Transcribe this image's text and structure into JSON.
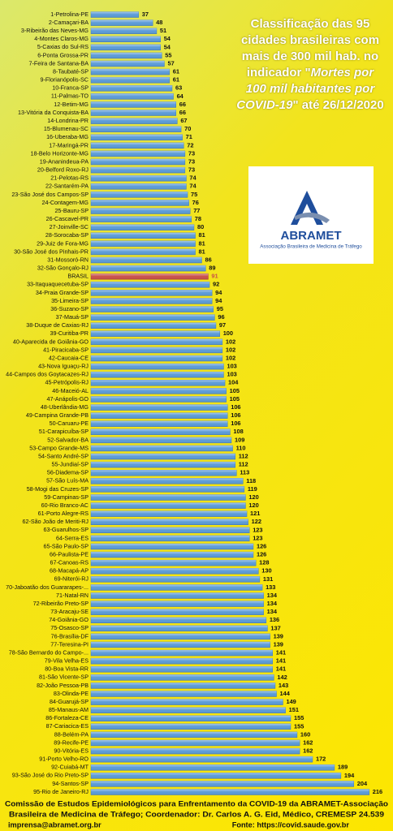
{
  "chart_data": {
    "type": "hbar",
    "title_parts": [
      "Classificação das 95 cidades brasileiras com mais de 300 mil hab. no indicador \"",
      "Mortes por 100 mil habitantes por COVID-19",
      "\" até 26/12/2020"
    ],
    "title_italic_part": 1,
    "logo": {
      "name": "ABRAMET",
      "subtitle": "Associação Brasileira de Medicina de Tráfego"
    },
    "footer": [
      "Comissão de Estudos Epidemiológicos para Enfrentamento da COVID-19 da ABRAMET-Associação",
      "Brasileira de Medicina de Tráfego;  Coordenador: Dr. Carlos A. G. Eid, Médico, CREMESP 24.539",
      "imprensa@abramet.org.br",
      "Fonte: https://covid.saude.gov.br"
    ],
    "categories": [
      "1-Petrolina-PE",
      "2-Camaçari-BA",
      "3-Ribeirão das Neves-MG",
      "4-Montes Claros-MG",
      "5-Caxias do Sul-RS",
      "6-Ponta Grossa-PR",
      "7-Feira de Santana-BA",
      "8-Taubaté-SP",
      "9-Florianópolis-SC",
      "10-Franca-SP",
      "11-Palmas-TO",
      "12-Betim-MG",
      "13-Vitória da Conquista-BA",
      "14-Londrina-PR",
      "15-Blumenau-SC",
      "16-Uberaba-MG",
      "17-Maringá-PR",
      "18-Belo Horizonte-MG",
      "19-Ananindeua-PA",
      "20-Belford Roxo-RJ",
      "21-Pelotas-RS",
      "22-Santarém-PA",
      "23-São José dos Campos-SP",
      "24-Contagem-MG",
      "25-Bauru-SP",
      "26-Cascavel-PR",
      "27-Joinville-SC",
      "28-Sorocaba-SP",
      "29-Juiz de Fora-MG",
      "30-São José dos Pinhais-PR",
      "31-Mossoró-RN",
      "32-São Gonçalo-RJ",
      "BRASIL",
      "33-Itaquaquecetuba-SP",
      "34-Praia Grande-SP",
      "35-Limeira-SP",
      "36-Suzano-SP",
      "37-Mauá-SP",
      "38-Duque de Caxias-RJ",
      "39-Curitiba-PR",
      "40-Aparecida de Goiânia-GO",
      "41-Piracicaba-SP",
      "42-Caucaia-CE",
      "43-Nova Iguaçu-RJ",
      "44-Campos dos Goytacazes-RJ",
      "45-Petrópolis-RJ",
      "46-Maceió-AL",
      "47-Anápolis-GO",
      "48-Uberlândia-MG",
      "49-Campina Grande-PB",
      "50-Caruaru-PE",
      "51-Carapicuíba-SP",
      "52-Salvador-BA",
      "53-Campo Grande-MS",
      "54-Santo André-SP",
      "55-Jundiaí-SP",
      "56-Diadema-SP",
      "57-São Luís-MA",
      "58-Mogi das Cruzes-SP",
      "59-Campinas-SP",
      "60-Rio Branco-AC",
      "61-Porto Alegre-RS",
      "62-São João de Meriti-RJ",
      "63-Guarulhos-SP",
      "64-Serra-ES",
      "65-São Paulo-SP",
      "66-Paulista-PE",
      "67-Canoas-RS",
      "68-Macapá-AP",
      "69-Niterói-RJ",
      "70-Jaboatão dos Guararapes-...",
      "71-Natal-RN",
      "72-Ribeirão Preto-SP",
      "73-Aracaju-SE",
      "74-Goiânia-GO",
      "75-Osasco-SP",
      "76-Brasília-DF",
      "77-Teresina-PI",
      "78-São Bernardo do Campo-...",
      "79-Vila Velha-ES",
      "80-Boa Vista-RR",
      "81-São Vicente-SP",
      "82-João Pessoa-PB",
      "83-Olinda-PE",
      "84-Guarujá-SP",
      "85-Manaus-AM",
      "86-Fortaleza-CE",
      "87-Cariacica-ES",
      "88-Belém-PA",
      "89-Recife-PE",
      "90-Vitória-ES",
      "91-Porto Velho-RO",
      "92-Cuiabá-MT",
      "93-São José do Rio Preto-SP",
      "94-Santos-SP",
      "95-Rio de Janeiro-RJ"
    ],
    "values": [
      37,
      48,
      51,
      54,
      54,
      55,
      57,
      61,
      61,
      63,
      64,
      66,
      66,
      67,
      70,
      71,
      72,
      73,
      73,
      73,
      74,
      74,
      75,
      76,
      77,
      78,
      80,
      81,
      81,
      81,
      86,
      89,
      91,
      92,
      94,
      94,
      95,
      96,
      97,
      100,
      102,
      102,
      102,
      103,
      103,
      104,
      105,
      105,
      106,
      106,
      106,
      108,
      109,
      110,
      112,
      112,
      113,
      118,
      119,
      120,
      120,
      121,
      122,
      123,
      123,
      126,
      126,
      128,
      130,
      131,
      133,
      134,
      134,
      134,
      136,
      137,
      139,
      139,
      141,
      141,
      141,
      142,
      143,
      144,
      149,
      151,
      155,
      155,
      160,
      162,
      162,
      172,
      189,
      194,
      204,
      216
    ],
    "color": "#5b9bd8",
    "highlight": {
      "index": 32,
      "color": "#c9504a"
    },
    "xlim": [
      0,
      230
    ]
  }
}
